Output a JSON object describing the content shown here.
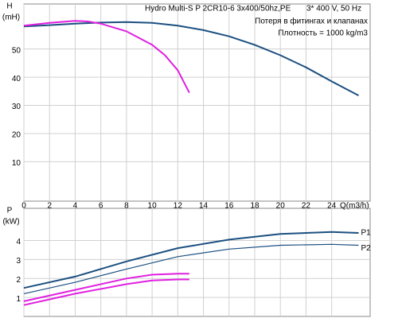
{
  "chart_data": [
    {
      "type": "line",
      "title": "Hydro Multi-S P 2CR10-6 3x400/50hz,PE",
      "subtitle": "3* 400 V, 50 Hz",
      "annotations": [
        "Потеря в фитингах и клапанах",
        "Плотность = 1000 kg/m3"
      ],
      "ylabel": "H",
      "yunit": "(mH)",
      "xlabel": "Q(m3/h)",
      "xlim": [
        0,
        27
      ],
      "xticks": [
        0,
        2,
        4,
        6,
        8,
        10,
        12,
        14,
        16,
        18,
        20,
        22,
        24
      ],
      "ylim": [
        -4,
        66
      ],
      "yticks": [
        10,
        20,
        30,
        40,
        50
      ],
      "grid": true,
      "series": [
        {
          "color": "#1b4f80",
          "x": [
            0,
            2,
            4,
            6,
            8,
            10,
            12,
            14,
            16,
            18,
            20,
            22,
            24,
            26.1
          ],
          "values": [
            58,
            58.5,
            59,
            59.4,
            59.6,
            59.3,
            58.3,
            56.7,
            54.5,
            51.5,
            47.8,
            43.5,
            38.5,
            33.5
          ]
        },
        {
          "color": "#e020e0",
          "x": [
            0,
            2,
            4,
            5,
            6,
            8,
            10,
            11,
            12,
            12.9
          ],
          "values": [
            58.3,
            59.3,
            60,
            59.8,
            59,
            56.3,
            51.5,
            47.8,
            42.5,
            34.5
          ]
        }
      ]
    },
    {
      "type": "line",
      "ylabel": "P",
      "yunit": "(kW)",
      "xlim": [
        0,
        27
      ],
      "xticks": [
        0,
        2,
        4,
        6,
        8,
        10,
        12,
        14,
        16,
        18,
        20,
        22,
        24
      ],
      "ylim": [
        0,
        5.7
      ],
      "yticks": [
        1,
        2,
        3,
        4
      ],
      "grid": true,
      "series": [
        {
          "name": "P1",
          "color": "#1b4f80",
          "x": [
            0,
            4,
            8,
            12,
            16,
            20,
            24,
            26.1
          ],
          "values": [
            1.5,
            2.1,
            2.9,
            3.6,
            4.05,
            4.35,
            4.45,
            4.4
          ]
        },
        {
          "name": "P2",
          "color": "#1b4f80",
          "x": [
            0,
            4,
            8,
            12,
            16,
            20,
            24,
            26.1
          ],
          "values": [
            1.2,
            1.8,
            2.5,
            3.15,
            3.55,
            3.75,
            3.8,
            3.75
          ]
        },
        {
          "color": "#e020e0",
          "x": [
            0,
            4,
            8,
            10,
            12,
            12.9
          ],
          "values": [
            0.8,
            1.4,
            2.0,
            2.2,
            2.25,
            2.25
          ]
        },
        {
          "color": "#e020e0",
          "x": [
            0,
            4,
            8,
            10,
            12,
            12.9
          ],
          "values": [
            0.6,
            1.2,
            1.7,
            1.9,
            1.95,
            1.95
          ]
        }
      ]
    }
  ]
}
